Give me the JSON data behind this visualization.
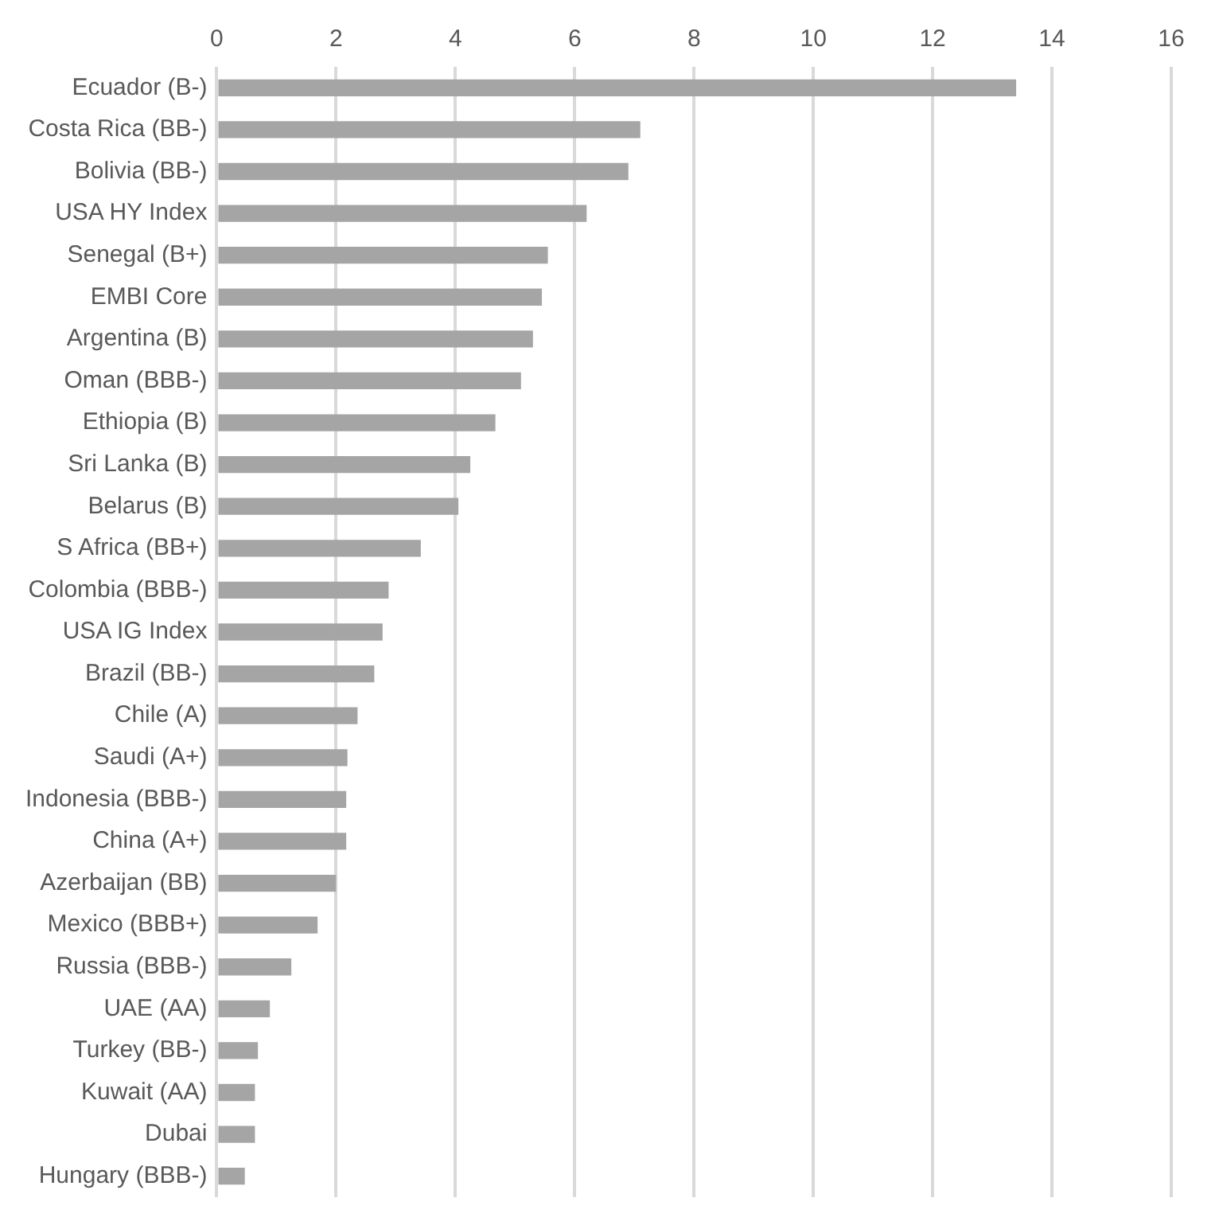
{
  "chart_data": {
    "type": "bar",
    "orientation": "horizontal",
    "categories": [
      "Ecuador (B-)",
      "Costa Rica (BB-)",
      "Bolivia (BB-)",
      "USA HY Index",
      "Senegal (B+)",
      "EMBI Core",
      "Argentina (B)",
      "Oman (BBB-)",
      "Ethiopia (B)",
      "Sri Lanka (B)",
      "Belarus (B)",
      "S Africa (BB+)",
      "Colombia (BBB-)",
      "USA IG Index",
      "Brazil (BB-)",
      "Chile (A)",
      "Saudi (A+)",
      "Indonesia (BBB-)",
      "China (A+)",
      "Azerbaijan (BB)",
      "Mexico (BBB+)",
      "Russia (BBB-)",
      "UAE (AA)",
      "Turkey (BB-)",
      "Kuwait (AA)",
      "Dubai",
      "Hungary (BBB-)"
    ],
    "values": [
      13.4,
      7.1,
      6.9,
      6.2,
      5.55,
      5.45,
      5.3,
      5.1,
      4.67,
      4.25,
      4.05,
      3.42,
      2.88,
      2.78,
      2.64,
      2.36,
      2.19,
      2.17,
      2.17,
      2.0,
      1.69,
      1.25,
      0.89,
      0.69,
      0.64,
      0.64,
      0.47
    ],
    "color": "#a5a5a5",
    "xlim": [
      0,
      16
    ],
    "xticks": [
      0,
      2,
      4,
      6,
      8,
      10,
      12,
      14,
      16
    ],
    "grid": "x",
    "legend": false
  }
}
